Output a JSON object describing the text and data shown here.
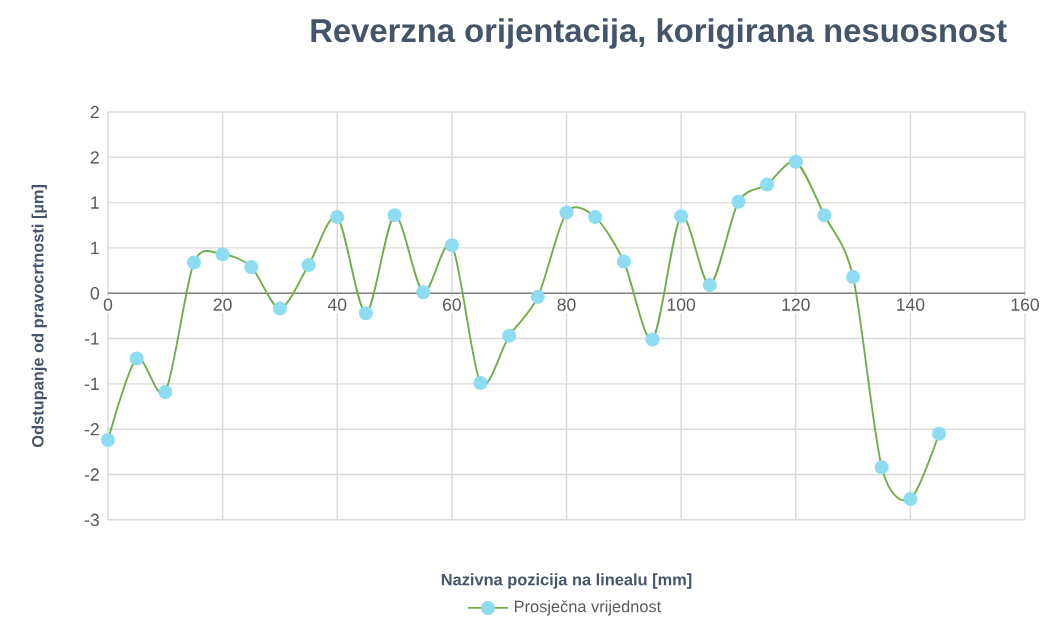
{
  "chart_data": {
    "type": "line",
    "title": "Reverzna orijentacija, korigirana nesuosnost",
    "xlabel": "Nazivna pozicija na linealu [mm]",
    "ylabel": "Odstupanje od pravocrtnosti [µm]",
    "x": [
      0,
      5,
      10,
      15,
      20,
      25,
      30,
      35,
      40,
      45,
      50,
      55,
      60,
      65,
      70,
      75,
      80,
      85,
      90,
      95,
      100,
      105,
      110,
      115,
      120,
      125,
      130,
      135,
      140,
      145
    ],
    "series": [
      {
        "name": "Prosječna vrijednost",
        "color": "#8ddcf2",
        "values": [
          -1.62,
          -0.72,
          -1.09,
          0.34,
          0.43,
          0.29,
          -0.17,
          0.31,
          0.84,
          -0.22,
          0.86,
          0.01,
          0.53,
          -0.99,
          -0.47,
          -0.04,
          0.89,
          0.84,
          0.35,
          -0.51,
          0.85,
          0.09,
          1.01,
          1.2,
          1.45,
          0.86,
          0.18,
          -1.92,
          -2.27,
          -1.55
        ]
      }
    ],
    "xlim": [
      0,
      160
    ],
    "xticks": [
      0,
      20,
      40,
      60,
      80,
      100,
      120,
      140,
      160
    ],
    "ylim": [
      -2.5,
      2
    ],
    "yticks": [
      {
        "value": -2.5,
        "label": "-3"
      },
      {
        "value": -2,
        "label": "-2"
      },
      {
        "value": -1.5,
        "label": "-2"
      },
      {
        "value": -1,
        "label": "-1"
      },
      {
        "value": -0.5,
        "label": "-1"
      },
      {
        "value": 0,
        "label": "0"
      },
      {
        "value": 0.5,
        "label": "1"
      },
      {
        "value": 1,
        "label": "1"
      },
      {
        "value": 1.5,
        "label": "2"
      },
      {
        "value": 2,
        "label": "2"
      }
    ],
    "grid": true,
    "legend": "bottom",
    "marker": "circle",
    "line_style": "solid"
  }
}
